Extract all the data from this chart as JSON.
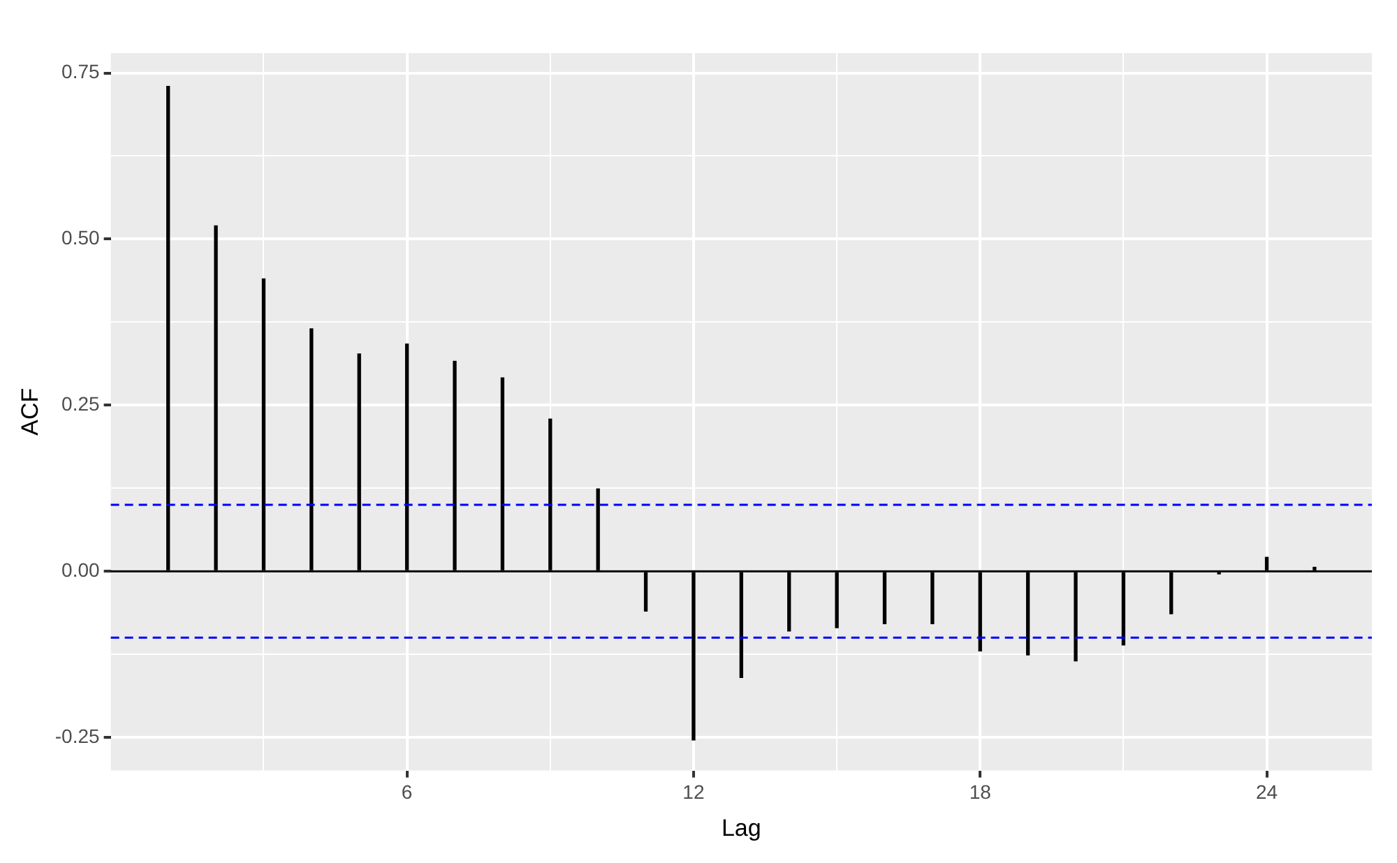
{
  "chart_data": {
    "type": "bar",
    "xlabel": "Lag",
    "ylabel": "ACF",
    "x": [
      1,
      2,
      3,
      4,
      5,
      6,
      7,
      8,
      9,
      10,
      11,
      12,
      13,
      14,
      15,
      16,
      17,
      18,
      19,
      20,
      21,
      22,
      23,
      24,
      25
    ],
    "series": [
      {
        "color": "#000000",
        "values": [
          0.73,
          0.52,
          0.44,
          0.365,
          0.327,
          0.342,
          0.316,
          0.291,
          0.229,
          0.124,
          -0.06,
          -0.254,
          -0.16,
          -0.09,
          -0.085,
          -0.079,
          -0.079,
          -0.12,
          -0.126,
          -0.135,
          -0.111,
          -0.064,
          -0.004,
          0.021,
          0.006
        ]
      }
    ],
    "xlim": [
      -0.2,
      26.2
    ],
    "ylim": [
      -0.3,
      0.78
    ],
    "xticks": [
      {
        "value": 3,
        "label": null
      },
      6,
      {
        "value": 9,
        "label": null
      },
      12,
      {
        "value": 15,
        "label": null
      },
      18,
      {
        "value": 21,
        "label": null
      },
      24
    ],
    "yticks": [
      {
        "value": -0.25,
        "label": "-0.25"
      },
      {
        "value": -0.125,
        "label": null
      },
      {
        "value": 0,
        "label": "0.00"
      },
      {
        "value": 0.125,
        "label": null
      },
      0.25,
      {
        "value": 0.375,
        "label": null
      },
      {
        "value": 0.5,
        "label": "0.50"
      },
      {
        "value": 0.625,
        "label": null
      },
      0.75
    ],
    "ref_lines": [
      {
        "axis": "y",
        "value": 0,
        "color": "#000000",
        "line_style": "solid"
      },
      {
        "axis": "y",
        "value": 0.1,
        "color": "#0000ff",
        "line_style": "dashed"
      },
      {
        "axis": "y",
        "value": -0.1,
        "color": "#0000ff",
        "line_style": "dashed"
      }
    ],
    "grid": true,
    "legend": false
  }
}
